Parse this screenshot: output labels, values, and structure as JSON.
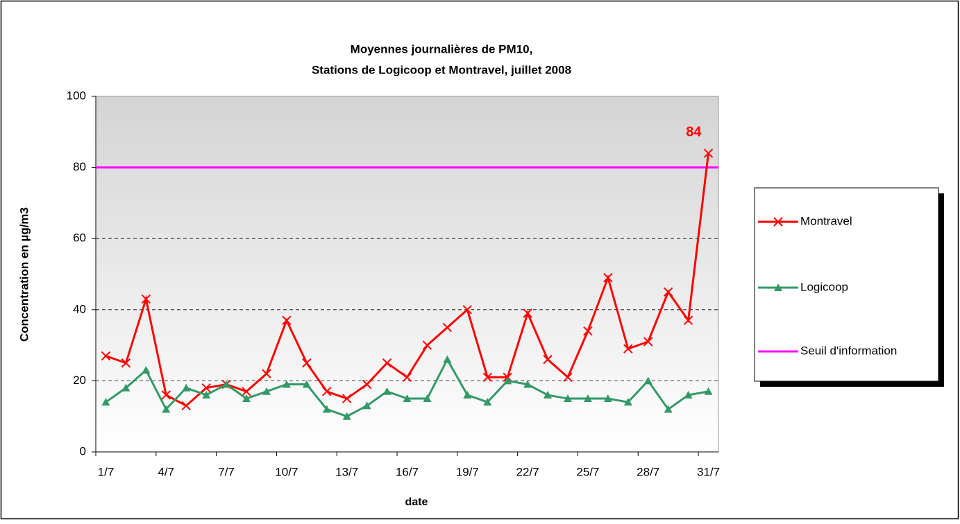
{
  "chart_data": {
    "type": "line",
    "title": [
      "Moyennes journalières de PM10,",
      "Stations de Logicoop et Montravel, juillet 2008"
    ],
    "x_label": "date",
    "y_label": "Concentration en µg/m3",
    "categories": [
      "1/7",
      null,
      null,
      "4/7",
      null,
      null,
      "7/7",
      null,
      null,
      "10/7",
      null,
      null,
      "13/7",
      null,
      null,
      "16/7",
      null,
      null,
      "19/7",
      null,
      null,
      "22/7",
      null,
      null,
      "25/7",
      null,
      null,
      "28/7",
      null,
      null,
      "31/7"
    ],
    "series": [
      {
        "name": "Montravel",
        "color": "#ff0000",
        "marker": "x",
        "values": [
          27,
          25,
          43,
          16,
          13,
          18,
          19,
          17,
          22,
          37,
          25,
          17,
          15,
          19,
          25,
          21,
          30,
          35,
          40,
          21,
          21,
          39,
          26,
          21,
          34,
          49,
          29,
          31,
          45,
          37,
          84
        ],
        "value_labels": [
          null,
          null,
          null,
          null,
          null,
          null,
          null,
          null,
          null,
          null,
          null,
          null,
          null,
          null,
          null,
          null,
          null,
          null,
          null,
          null,
          null,
          null,
          null,
          null,
          null,
          null,
          null,
          null,
          null,
          null,
          "84"
        ]
      },
      {
        "name": "Logicoop",
        "color": "#339966",
        "marker": "triangle",
        "values": [
          14,
          18,
          23,
          12,
          18,
          16,
          19,
          15,
          17,
          19,
          19,
          12,
          10,
          13,
          17,
          15,
          15,
          26,
          16,
          14,
          20,
          19,
          16,
          15,
          15,
          15,
          14,
          20,
          12,
          16,
          17
        ]
      }
    ],
    "threshold": {
      "name": "Seuil d'information",
      "value": 80,
      "color": "#ff00ff"
    },
    "ylim": [
      0,
      100
    ],
    "yticks": [
      0,
      20,
      40,
      60,
      80,
      100
    ],
    "grid": true,
    "legend": "right"
  }
}
